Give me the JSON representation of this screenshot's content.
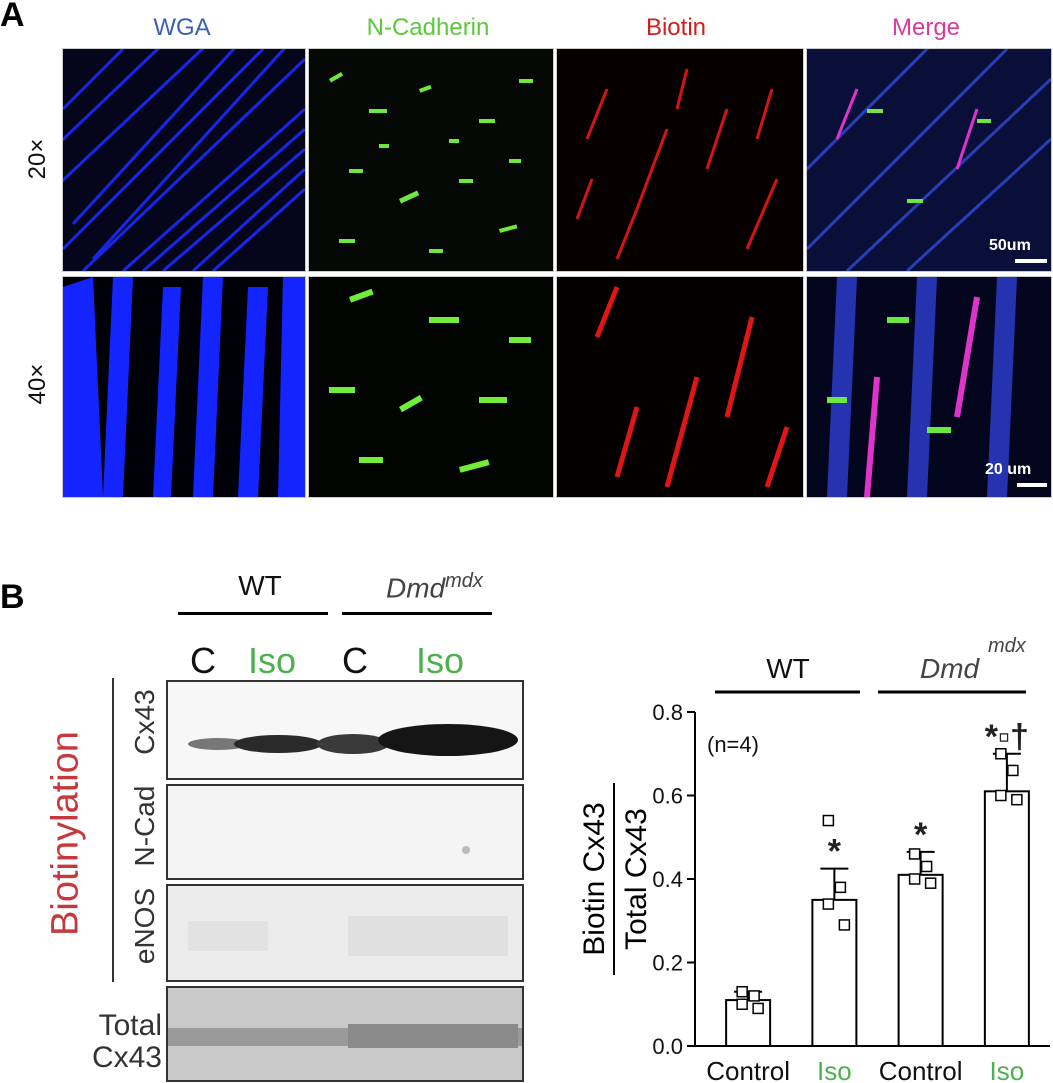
{
  "panel_a": {
    "letter": "A",
    "columns": [
      {
        "label": "WGA",
        "color": "#3a5fb3"
      },
      {
        "label": "N-Cadherin",
        "color": "#5cc93a"
      },
      {
        "label": "Biotin",
        "color": "#d21d1d"
      },
      {
        "label": "Merge",
        "color": "#d93aa1"
      }
    ],
    "rows": [
      "20×",
      "40×"
    ],
    "scale_20x": "50um",
    "scale_40x": "20 um"
  },
  "panel_b": {
    "letter": "B",
    "group_wt": "WT",
    "group_dmd": "Dmd",
    "group_dmd_sup": "mdx",
    "lanes": [
      {
        "label": "C",
        "color": "#111111"
      },
      {
        "label": "Iso",
        "color": "#4fb04f"
      },
      {
        "label": "C",
        "color": "#111111"
      },
      {
        "label": "Iso",
        "color": "#4fb04f"
      }
    ],
    "side_label": "Biotinylation",
    "side_label_color": "#c8373b",
    "blots": [
      {
        "label": "Cx43"
      },
      {
        "label": "N-Cad"
      },
      {
        "label": "eNOS"
      }
    ],
    "total_label_line1": "Total",
    "total_label_line2": "Cx43"
  },
  "chart_data": {
    "type": "bar",
    "categories": [
      "Control",
      "Iso",
      "Control",
      "Iso"
    ],
    "category_colors": [
      "#111111",
      "#4fb04f",
      "#111111",
      "#4fb04f"
    ],
    "values": [
      0.11,
      0.35,
      0.41,
      0.61
    ],
    "errors": [
      0.02,
      0.075,
      0.055,
      0.09
    ],
    "points": [
      [
        0.13,
        0.12,
        0.1,
        0.09
      ],
      [
        0.54,
        0.38,
        0.34,
        0.29
      ],
      [
        0.46,
        0.43,
        0.4,
        0.39
      ],
      [
        0.7,
        0.66,
        0.6,
        0.59
      ]
    ],
    "markers": [
      "",
      "*",
      "*",
      "*▫†"
    ],
    "ylabel_numerator": "Biotin Cx43",
    "ylabel_denominator": "Total Cx43",
    "ylim": [
      0,
      0.8
    ],
    "yticks": [
      "0.0",
      "0.2",
      "0.4",
      "0.6",
      "0.8"
    ],
    "annotation": "(n=4)",
    "group_wt": "WT",
    "group_dmd": "Dmd",
    "group_dmd_sup": "mdx"
  }
}
